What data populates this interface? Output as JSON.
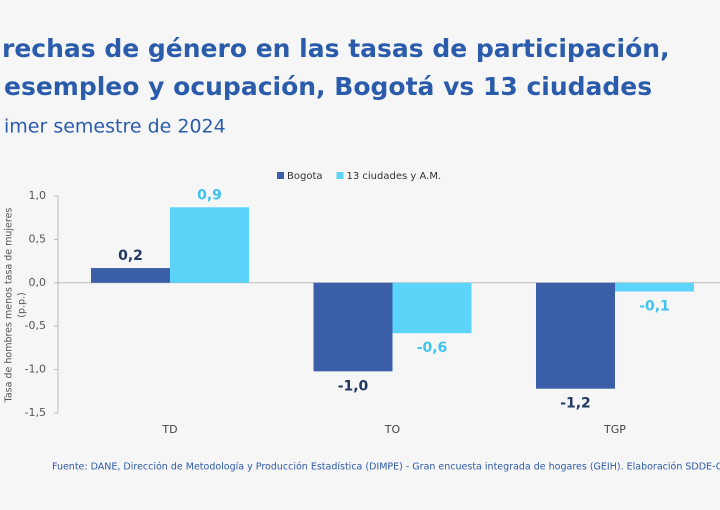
{
  "chart_data": {
    "type": "bar",
    "title": [
      "rechas de género en las tasas de participación,",
      "esempleo y ocupación, Bogotá vs 13 ciudades"
    ],
    "subtitle": "imer semestre de 2024",
    "y_label": [
      "Tasa de hombres menos tasa de mujeres",
      "(p.p.)"
    ],
    "source": "Fuente: DANE, Dirección de Metodología y Producción Estadística (DIMPE) - Gran encuesta integrada de hogares (GEIH). Elaboración SDDE-O",
    "categories": [
      "TD",
      "TO",
      "TGP"
    ],
    "series": [
      {
        "name": "Bogota",
        "color": "#3a5fa8",
        "values": [
          0.17,
          -1.02,
          -1.22
        ],
        "value_labels": [
          "0,2",
          "-1,0",
          "-1,2"
        ]
      },
      {
        "name": "13 ciudades y A.M.",
        "color": "#5cd3f8",
        "values": [
          0.87,
          -0.58,
          -0.1
        ],
        "value_labels": [
          "0,9",
          "-0,6",
          "-0,1"
        ]
      }
    ],
    "ylim": [
      -1.5,
      1.0
    ],
    "yticks": [
      {
        "value": 1.0,
        "label": "1,0"
      },
      {
        "value": 0.5,
        "label": "0,5"
      },
      {
        "value": 0,
        "label": "0,0"
      },
      {
        "value": -0.5,
        "label": "-0,5"
      },
      {
        "value": -1.0,
        "label": "-1,0"
      },
      {
        "value": -1.5,
        "label": "-1,5"
      }
    ]
  }
}
